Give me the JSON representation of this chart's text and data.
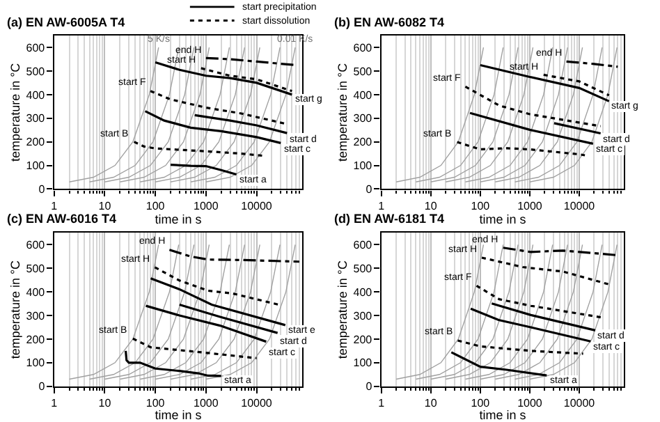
{
  "chart_data": [
    {
      "type": "line",
      "title": "(a) EN AW-6005A T4",
      "xlabel": "time in s",
      "ylabel": "temperature in °C",
      "log": "x",
      "grid": "x",
      "xlim": [
        1,
        80000
      ],
      "ylim": [
        0,
        650
      ],
      "xticks": [
        1,
        10,
        100,
        1000,
        10000
      ],
      "yticks": [
        0,
        100,
        200,
        300,
        400,
        500,
        600
      ],
      "annotations": [
        "start precipitation",
        "start dissolution",
        {
          "text": "5 K/s",
          "x": 116,
          "y": 600
        },
        {
          "text": "0.01 K/s",
          "x": 58000,
          "y": 600
        }
      ],
      "series": [
        {
          "color": "#a0a0a0",
          "x": [
            2,
            6,
            16,
            36,
            76,
            116
          ],
          "values": [
            30,
            50,
            100,
            200,
            400,
            600
          ]
        },
        {
          "color": "#a0a0a0",
          "x": [
            5,
            15,
            40,
            90,
            190,
            290
          ],
          "values": [
            30,
            50,
            100,
            200,
            400,
            600
          ]
        },
        {
          "color": "#a0a0a0",
          "x": [
            10,
            30,
            80,
            180,
            380,
            580
          ],
          "values": [
            30,
            50,
            100,
            200,
            400,
            600
          ]
        },
        {
          "color": "#a0a0a0",
          "x": [
            20,
            60,
            160,
            360,
            760,
            1160
          ],
          "values": [
            30,
            50,
            100,
            200,
            400,
            600
          ]
        },
        {
          "color": "#a0a0a0",
          "x": [
            50,
            150,
            400,
            900,
            1900,
            2900
          ],
          "values": [
            30,
            50,
            100,
            200,
            400,
            600
          ]
        },
        {
          "color": "#a0a0a0",
          "x": [
            100,
            300,
            800,
            1800,
            3800,
            5800
          ],
          "values": [
            30,
            50,
            100,
            200,
            400,
            600
          ]
        },
        {
          "color": "#a0a0a0",
          "x": [
            200,
            600,
            1600,
            3600,
            7600,
            11600
          ],
          "values": [
            30,
            50,
            100,
            200,
            400,
            600
          ]
        },
        {
          "color": "#a0a0a0",
          "x": [
            500,
            1500,
            4000,
            9000,
            19000,
            29000
          ],
          "values": [
            30,
            50,
            100,
            200,
            400,
            600
          ]
        },
        {
          "color": "#a0a0a0",
          "x": [
            1000,
            3000,
            8000,
            18000,
            38000,
            58000
          ],
          "values": [
            30,
            50,
            100,
            200,
            400,
            600
          ]
        },
        {
          "name": "end H",
          "color": "#000000",
          "line_style": "dashed",
          "x": [
            1000,
            3000,
            10000,
            60000
          ],
          "values": [
            555,
            550,
            540,
            525
          ]
        },
        {
          "name": "start H",
          "color": "#000000",
          "line_style": "dotted",
          "x": [
            800,
            3000,
            10000,
            50000
          ],
          "values": [
            512,
            480,
            465,
            415
          ]
        },
        {
          "name": "start g",
          "color": "#000000",
          "line_style": "solid",
          "x": [
            100,
            300,
            1000,
            3000,
            10000,
            50000
          ],
          "values": [
            537,
            505,
            480,
            470,
            450,
            400
          ]
        },
        {
          "name": "start F",
          "color": "#000000",
          "line_style": "dotted",
          "x": [
            80,
            200,
            1000,
            5000,
            40000
          ],
          "values": [
            415,
            380,
            345,
            320,
            275
          ]
        },
        {
          "name": "start d",
          "color": "#000000",
          "line_style": "solid",
          "x": [
            600,
            3000,
            10000,
            40000
          ],
          "values": [
            313,
            290,
            270,
            237
          ]
        },
        {
          "name": "start c",
          "color": "#000000",
          "line_style": "solid",
          "x": [
            63,
            150,
            500,
            2000,
            10000,
            30000
          ],
          "values": [
            330,
            290,
            260,
            245,
            220,
            195
          ]
        },
        {
          "name": "start B",
          "color": "#000000",
          "line_style": "dotted",
          "x": [
            38,
            60,
            100,
            1000,
            5000,
            15000
          ],
          "values": [
            200,
            180,
            172,
            160,
            150,
            140
          ]
        },
        {
          "name": "start a",
          "color": "#000000",
          "line_style": "solid",
          "x": [
            200,
            500,
            1000,
            2000,
            4000
          ],
          "values": [
            103,
            98,
            97,
            80,
            62
          ]
        }
      ]
    },
    {
      "type": "line",
      "title": "(b) EN AW-6082 T4",
      "xlabel": "time in s",
      "ylabel": "temperature in °C",
      "log": "x",
      "grid": "x",
      "xlim": [
        1,
        80000
      ],
      "ylim": [
        0,
        650
      ],
      "xticks": [
        1,
        10,
        100,
        1000,
        10000
      ],
      "yticks": [
        0,
        100,
        200,
        300,
        400,
        500,
        600
      ],
      "series": [
        {
          "color": "#a0a0a0",
          "x": [
            2,
            6,
            16,
            36,
            76,
            116
          ],
          "values": [
            30,
            50,
            100,
            200,
            400,
            600
          ]
        },
        {
          "color": "#a0a0a0",
          "x": [
            5,
            15,
            40,
            90,
            190,
            290
          ],
          "values": [
            30,
            50,
            100,
            200,
            400,
            600
          ]
        },
        {
          "color": "#a0a0a0",
          "x": [
            10,
            30,
            80,
            180,
            380,
            580
          ],
          "values": [
            30,
            50,
            100,
            200,
            400,
            600
          ]
        },
        {
          "color": "#a0a0a0",
          "x": [
            20,
            60,
            160,
            360,
            760,
            1160
          ],
          "values": [
            30,
            50,
            100,
            200,
            400,
            600
          ]
        },
        {
          "color": "#a0a0a0",
          "x": [
            50,
            150,
            400,
            900,
            1900,
            2900
          ],
          "values": [
            30,
            50,
            100,
            200,
            400,
            600
          ]
        },
        {
          "color": "#a0a0a0",
          "x": [
            100,
            300,
            800,
            1800,
            3800,
            5800
          ],
          "values": [
            30,
            50,
            100,
            200,
            400,
            600
          ]
        },
        {
          "color": "#a0a0a0",
          "x": [
            200,
            600,
            1600,
            3600,
            7600,
            11600
          ],
          "values": [
            30,
            50,
            100,
            200,
            400,
            600
          ]
        },
        {
          "color": "#a0a0a0",
          "x": [
            500,
            1500,
            4000,
            9000,
            19000,
            29000
          ],
          "values": [
            30,
            50,
            100,
            200,
            400,
            600
          ]
        },
        {
          "color": "#a0a0a0",
          "x": [
            1000,
            3000,
            8000,
            18000,
            38000,
            58000
          ],
          "values": [
            30,
            50,
            100,
            200,
            400,
            600
          ]
        },
        {
          "name": "end H",
          "color": "#000000",
          "line_style": "dashed",
          "x": [
            5500,
            20000,
            60000
          ],
          "values": [
            540,
            530,
            518
          ]
        },
        {
          "name": "start H",
          "color": "#000000",
          "line_style": "dotted",
          "x": [
            1900,
            10000,
            40000
          ],
          "values": [
            484,
            456,
            397
          ]
        },
        {
          "name": "start g",
          "color": "#000000",
          "line_style": "solid",
          "x": [
            100,
            1000,
            10000,
            40000
          ],
          "values": [
            525,
            475,
            428,
            372
          ]
        },
        {
          "name": "start F",
          "color": "#000000",
          "line_style": "dotted",
          "x": [
            50,
            240,
            1000,
            27000
          ],
          "values": [
            434,
            354,
            317,
            266
          ]
        },
        {
          "name": "start d",
          "color": "#000000",
          "line_style": "solid",
          "x": [
            3100,
            27000
          ],
          "values": [
            279,
            236
          ]
        },
        {
          "name": "start c",
          "color": "#000000",
          "line_style": "solid",
          "x": [
            62,
            1000,
            19000
          ],
          "values": [
            322,
            251,
            192
          ]
        },
        {
          "name": "start B",
          "color": "#000000",
          "line_style": "dotted",
          "x": [
            34,
            100,
            350,
            1000,
            10000,
            13000
          ],
          "values": [
            199,
            168,
            173,
            168,
            147,
            143
          ]
        }
      ]
    },
    {
      "type": "line",
      "title": "(c) EN AW-6016 T4",
      "xlabel": "time in s",
      "ylabel": "temperature in °C",
      "log": "x",
      "grid": "x",
      "xlim": [
        1,
        80000
      ],
      "ylim": [
        0,
        650
      ],
      "xticks": [
        1,
        10,
        100,
        1000,
        10000
      ],
      "yticks": [
        0,
        100,
        200,
        300,
        400,
        500,
        600
      ],
      "series": [
        {
          "color": "#a0a0a0",
          "x": [
            2,
            6,
            16,
            36,
            76,
            116
          ],
          "values": [
            30,
            50,
            100,
            200,
            400,
            600
          ]
        },
        {
          "color": "#a0a0a0",
          "x": [
            5,
            15,
            40,
            90,
            190,
            290
          ],
          "values": [
            30,
            50,
            100,
            200,
            400,
            600
          ]
        },
        {
          "color": "#a0a0a0",
          "x": [
            10,
            30,
            80,
            180,
            380,
            580
          ],
          "values": [
            30,
            50,
            100,
            200,
            400,
            600
          ]
        },
        {
          "color": "#a0a0a0",
          "x": [
            20,
            60,
            160,
            360,
            760,
            1160
          ],
          "values": [
            30,
            50,
            100,
            200,
            400,
            600
          ]
        },
        {
          "color": "#a0a0a0",
          "x": [
            50,
            150,
            400,
            900,
            1900,
            2900
          ],
          "values": [
            30,
            50,
            100,
            200,
            400,
            600
          ]
        },
        {
          "color": "#a0a0a0",
          "x": [
            100,
            300,
            800,
            1800,
            3800,
            5800
          ],
          "values": [
            30,
            50,
            100,
            200,
            400,
            600
          ]
        },
        {
          "color": "#a0a0a0",
          "x": [
            200,
            600,
            1600,
            3600,
            7600,
            11600
          ],
          "values": [
            30,
            50,
            100,
            200,
            400,
            600
          ]
        },
        {
          "color": "#a0a0a0",
          "x": [
            500,
            1500,
            4000,
            9000,
            19000,
            29000
          ],
          "values": [
            30,
            50,
            100,
            200,
            400,
            600
          ]
        },
        {
          "color": "#a0a0a0",
          "x": [
            1000,
            3000,
            8000,
            18000,
            38000,
            58000
          ],
          "values": [
            30,
            50,
            100,
            200,
            400,
            600
          ]
        },
        {
          "name": "end H",
          "color": "#000000",
          "line_style": "dashed",
          "x": [
            190,
            500,
            1100,
            5000,
            70000
          ],
          "values": [
            578,
            550,
            537,
            535,
            528
          ]
        },
        {
          "name": "start H",
          "color": "#000000",
          "line_style": "dotted",
          "x": [
            98,
            300,
            1100,
            3400,
            31000
          ],
          "values": [
            504,
            448,
            405,
            393,
            343
          ]
        },
        {
          "name": "start e",
          "color": "#000000",
          "line_style": "solid",
          "x": [
            81,
            300,
            1300,
            37000
          ],
          "values": [
            457,
            411,
            346,
            259
          ]
        },
        {
          "name": "start d",
          "color": "#000000",
          "line_style": "solid",
          "x": [
            300,
            1900,
            26000
          ],
          "values": [
            346,
            294,
            226
          ]
        },
        {
          "name": "start c",
          "color": "#000000",
          "line_style": "solid",
          "x": [
            65,
            300,
            1900,
            15500
          ],
          "values": [
            341,
            300,
            257,
            189
          ]
        },
        {
          "name": "start B",
          "color": "#000000",
          "line_style": "dotted",
          "x": [
            36,
            81,
            900,
            10000
          ],
          "values": [
            202,
            165,
            143,
            119
          ]
        },
        {
          "name": "start a",
          "color": "#000000",
          "line_style": "solid",
          "x": [
            26,
            27,
            30,
            50,
            100,
            300,
            700,
            1100,
            2000
          ],
          "values": [
            150,
            110,
            100,
            100,
            75,
            65,
            55,
            45,
            44
          ]
        }
      ]
    },
    {
      "type": "line",
      "title": "(d) EN AW-6181 T4",
      "xlabel": "time in s",
      "ylabel": "temperature in °C",
      "log": "x",
      "grid": "x",
      "xlim": [
        1,
        80000
      ],
      "ylim": [
        0,
        650
      ],
      "xticks": [
        1,
        10,
        100,
        1000,
        10000
      ],
      "yticks": [
        0,
        100,
        200,
        300,
        400,
        500,
        600
      ],
      "series": [
        {
          "color": "#a0a0a0",
          "x": [
            2,
            6,
            16,
            36,
            76,
            116
          ],
          "values": [
            30,
            50,
            100,
            200,
            400,
            600
          ]
        },
        {
          "color": "#a0a0a0",
          "x": [
            5,
            15,
            40,
            90,
            190,
            290
          ],
          "values": [
            30,
            50,
            100,
            200,
            400,
            600
          ]
        },
        {
          "color": "#a0a0a0",
          "x": [
            10,
            30,
            80,
            180,
            380,
            580
          ],
          "values": [
            30,
            50,
            100,
            200,
            400,
            600
          ]
        },
        {
          "color": "#a0a0a0",
          "x": [
            20,
            60,
            160,
            360,
            760,
            1160
          ],
          "values": [
            30,
            50,
            100,
            200,
            400,
            600
          ]
        },
        {
          "color": "#a0a0a0",
          "x": [
            50,
            150,
            400,
            900,
            1900,
            2900
          ],
          "values": [
            30,
            50,
            100,
            200,
            400,
            600
          ]
        },
        {
          "color": "#a0a0a0",
          "x": [
            100,
            300,
            800,
            1800,
            3800,
            5800
          ],
          "values": [
            30,
            50,
            100,
            200,
            400,
            600
          ]
        },
        {
          "color": "#a0a0a0",
          "x": [
            200,
            600,
            1600,
            3600,
            7600,
            11600
          ],
          "values": [
            30,
            50,
            100,
            200,
            400,
            600
          ]
        },
        {
          "color": "#a0a0a0",
          "x": [
            500,
            1500,
            4000,
            9000,
            19000,
            29000
          ],
          "values": [
            30,
            50,
            100,
            200,
            400,
            600
          ]
        },
        {
          "color": "#a0a0a0",
          "x": [
            1000,
            3000,
            8000,
            18000,
            38000,
            58000
          ],
          "values": [
            30,
            50,
            100,
            200,
            400,
            600
          ]
        },
        {
          "name": "end H",
          "color": "#000000",
          "line_style": "dashed",
          "x": [
            290,
            1050,
            4700,
            54000
          ],
          "values": [
            587,
            569,
            575,
            556
          ]
        },
        {
          "name": "start H",
          "color": "#000000",
          "line_style": "dotted",
          "x": [
            107,
            720,
            4700,
            41000
          ],
          "values": [
            545,
            505,
            486,
            431
          ]
        },
        {
          "name": "start F",
          "color": "#000000",
          "line_style": "dotted",
          "x": [
            84,
            240,
            1050,
            28000
          ],
          "values": [
            426,
            369,
            341,
            292
          ]
        },
        {
          "name": "start d",
          "color": "#000000",
          "line_style": "solid",
          "x": [
            170,
            1050,
            21000
          ],
          "values": [
            351,
            302,
            237
          ]
        },
        {
          "name": "start c",
          "color": "#000000",
          "line_style": "solid",
          "x": [
            64,
            235,
            1050,
            17000
          ],
          "values": [
            329,
            281,
            250,
            190
          ]
        },
        {
          "name": "start B",
          "color": "#000000",
          "line_style": "dotted",
          "x": [
            35,
            100,
            1050,
            12000
          ],
          "values": [
            194,
            169,
            150,
            138
          ]
        },
        {
          "name": "start a",
          "color": "#000000",
          "line_style": "solid",
          "x": [
            26,
            100,
            340,
            2200
          ],
          "values": [
            144,
            83,
            70,
            46
          ]
        }
      ]
    }
  ]
}
